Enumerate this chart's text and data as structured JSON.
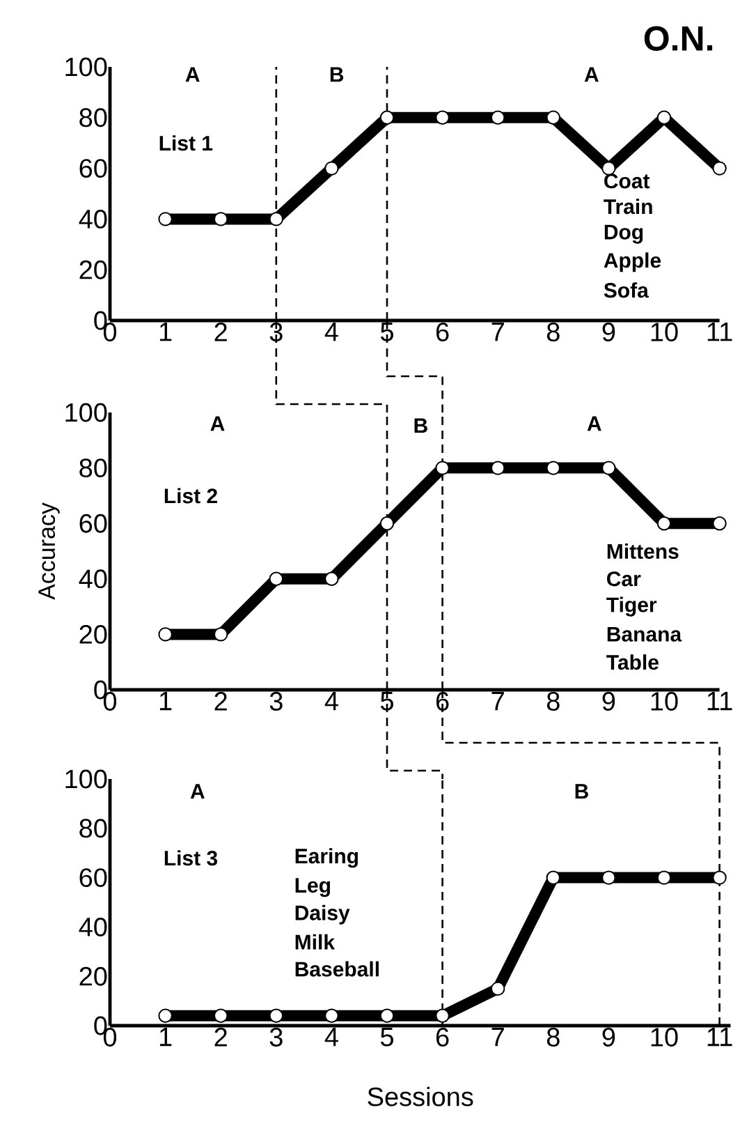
{
  "chart_data": [
    {
      "type": "line",
      "title": "O.N.",
      "x": [
        1,
        2,
        3,
        4,
        5,
        6,
        7,
        8,
        9,
        10,
        11
      ],
      "xlim": [
        0,
        11
      ],
      "xticks": [
        0,
        1,
        2,
        3,
        4,
        5,
        6,
        7,
        8,
        9,
        10,
        11
      ],
      "ylim": [
        0,
        100
      ],
      "yticks": [
        0,
        20,
        40,
        60,
        80,
        100
      ],
      "marker": "circle",
      "line_style": "solid",
      "series": [
        {
          "color": "#000000",
          "values": [
            40,
            40,
            40,
            60,
            80,
            80,
            80,
            80,
            60,
            80,
            60
          ]
        }
      ],
      "ref_lines": [
        {
          "axis": "x",
          "value": 3,
          "line_style": "dashed",
          "color": "#000000"
        },
        {
          "axis": "x",
          "value": 5,
          "line_style": "dashed",
          "color": "#000000"
        }
      ],
      "annotations": [
        "A",
        "B",
        "A",
        "List  1",
        "Coat",
        "Train",
        "Dog",
        "Apple",
        "Sofa"
      ]
    },
    {
      "type": "line",
      "ylabel": "Accuracy",
      "x": [
        1,
        2,
        3,
        4,
        5,
        6,
        7,
        8,
        9,
        10,
        11
      ],
      "xlim": [
        0,
        11
      ],
      "xticks": [
        0,
        1,
        2,
        3,
        4,
        5,
        6,
        7,
        8,
        9,
        10,
        11
      ],
      "ylim": [
        0,
        100
      ],
      "yticks": [
        0,
        20,
        40,
        60,
        80,
        100
      ],
      "marker": "circle",
      "line_style": "solid",
      "series": [
        {
          "color": "#000000",
          "values": [
            20,
            20,
            40,
            40,
            60,
            80,
            80,
            80,
            80,
            60,
            60
          ]
        }
      ],
      "ref_lines": [
        {
          "axis": "x",
          "value": 5,
          "line_style": "dashed",
          "color": "#000000"
        },
        {
          "axis": "x",
          "value": 6,
          "line_style": "dashed",
          "color": "#000000"
        }
      ],
      "annotations": [
        "A",
        {
          "text": "B",
          "x": 6,
          "y": 100
        },
        "A",
        "List  2",
        "Mittens",
        "Car",
        "Tiger",
        "Banana",
        "Table"
      ]
    },
    {
      "type": "line",
      "xlabel": "Sessions",
      "x": [
        1,
        2,
        3,
        4,
        5,
        6,
        7,
        8,
        9,
        10,
        11
      ],
      "xlim": [
        0,
        11.2
      ],
      "xticks": [
        0,
        1,
        2,
        3,
        4,
        5,
        6,
        7,
        8,
        9,
        10,
        11
      ],
      "ylim": [
        0,
        100
      ],
      "yticks": [
        0,
        20,
        40,
        60,
        80,
        100
      ],
      "marker": "circle",
      "line_style": "solid",
      "series": [
        {
          "color": "#000000",
          "values": [
            4,
            4,
            4,
            4,
            4,
            4,
            15,
            60,
            60,
            60,
            60
          ]
        }
      ],
      "ref_lines": [
        {
          "axis": "x",
          "value": 6,
          "line_style": "dashed",
          "color": "#000000"
        },
        {
          "axis": "x",
          "value": 11,
          "line_style": "dashed",
          "color": "#000000"
        }
      ],
      "annotations": [
        "A",
        "B",
        "List  3",
        "Earing",
        "Leg",
        "Daisy",
        "Milk",
        "Baseball"
      ]
    }
  ]
}
